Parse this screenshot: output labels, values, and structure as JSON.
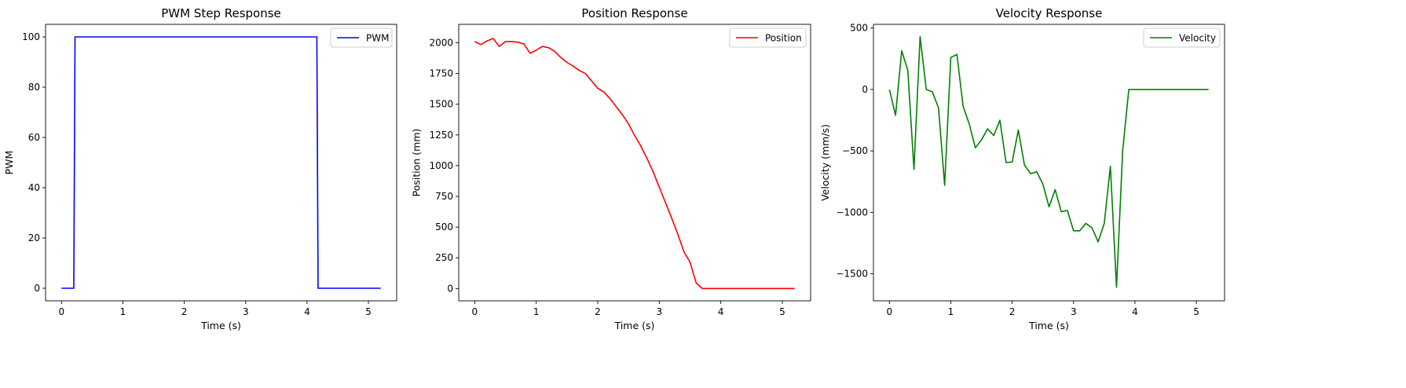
{
  "chart_data": [
    {
      "type": "line",
      "title": "PWM Step Response",
      "xlabel": "Time (s)",
      "ylabel": "PWM",
      "xlim": [
        -0.26,
        5.46
      ],
      "ylim": [
        -5,
        105
      ],
      "xticks": [
        0,
        1,
        2,
        3,
        4,
        5
      ],
      "xtick_labels": [
        "0",
        "1",
        "2",
        "3",
        "4",
        "5"
      ],
      "yticks": [
        0,
        20,
        40,
        60,
        80,
        100
      ],
      "ytick_labels": [
        "0",
        "20",
        "40",
        "60",
        "80",
        "100"
      ],
      "legend_position": "upper right",
      "series": [
        {
          "name": "PWM",
          "color": "#0000ff",
          "x": [
            0,
            0.2,
            0.22,
            4.16,
            4.18,
            5.2
          ],
          "y": [
            0,
            0,
            100,
            100,
            0,
            0
          ]
        }
      ]
    },
    {
      "type": "line",
      "title": "Position Response",
      "xlabel": "Time (s)",
      "ylabel": "Position (mm)",
      "xlim": [
        -0.26,
        5.46
      ],
      "ylim": [
        -100,
        2150
      ],
      "xticks": [
        0,
        1,
        2,
        3,
        4,
        5
      ],
      "xtick_labels": [
        "0",
        "1",
        "2",
        "3",
        "4",
        "5"
      ],
      "yticks": [
        0,
        250,
        500,
        750,
        1000,
        1250,
        1500,
        1750,
        2000
      ],
      "ytick_labels": [
        "0",
        "250",
        "500",
        "750",
        "1000",
        "1250",
        "1500",
        "1750",
        "2000"
      ],
      "legend_position": "upper right",
      "series": [
        {
          "name": "Position",
          "color": "#ff0000",
          "x": [
            0,
            0.1,
            0.2,
            0.3,
            0.4,
            0.5,
            0.6,
            0.7,
            0.8,
            0.9,
            1.0,
            1.1,
            1.2,
            1.3,
            1.4,
            1.5,
            1.6,
            1.7,
            1.8,
            1.9,
            2.0,
            2.1,
            2.2,
            2.3,
            2.4,
            2.5,
            2.6,
            2.7,
            2.8,
            2.9,
            3.0,
            3.1,
            3.2,
            3.3,
            3.4,
            3.5,
            3.6,
            3.7,
            3.8,
            3.9,
            4.0,
            4.5,
            5.0,
            5.2
          ],
          "y": [
            2010,
            1985,
            2015,
            2035,
            1970,
            2010,
            2010,
            2005,
            1990,
            1915,
            1940,
            1970,
            1960,
            1930,
            1880,
            1840,
            1810,
            1775,
            1750,
            1690,
            1630,
            1600,
            1545,
            1480,
            1415,
            1340,
            1245,
            1160,
            1060,
            950,
            825,
            700,
            575,
            445,
            300,
            215,
            45,
            0,
            0,
            0,
            0,
            0,
            0,
            0
          ]
        }
      ]
    },
    {
      "type": "line",
      "title": "Velocity Response",
      "xlabel": "Time (s)",
      "ylabel": "Velocity (mm/s)",
      "xlim": [
        -0.26,
        5.46
      ],
      "ylim": [
        -1720,
        530
      ],
      "xticks": [
        0,
        1,
        2,
        3,
        4,
        5
      ],
      "xtick_labels": [
        "0",
        "1",
        "2",
        "3",
        "4",
        "5"
      ],
      "yticks": [
        -1500,
        -1000,
        -500,
        0,
        500
      ],
      "ytick_labels": [
        "−1500",
        "−1000",
        "−500",
        "0",
        "500"
      ],
      "legend_position": "upper right",
      "series": [
        {
          "name": "Velocity",
          "color": "#008000",
          "x": [
            0,
            0.1,
            0.2,
            0.3,
            0.4,
            0.5,
            0.6,
            0.7,
            0.8,
            0.9,
            1.0,
            1.1,
            1.2,
            1.3,
            1.4,
            1.5,
            1.6,
            1.7,
            1.8,
            1.9,
            2.0,
            2.1,
            2.2,
            2.3,
            2.4,
            2.5,
            2.6,
            2.7,
            2.8,
            2.9,
            3.0,
            3.1,
            3.2,
            3.3,
            3.4,
            3.5,
            3.6,
            3.7,
            3.8,
            3.9,
            4.0,
            4.5,
            5.0,
            5.2
          ],
          "y": [
            0,
            -210,
            315,
            155,
            -650,
            430,
            0,
            -20,
            -150,
            -780,
            260,
            285,
            -135,
            -280,
            -475,
            -410,
            -320,
            -375,
            -250,
            -595,
            -590,
            -330,
            -615,
            -685,
            -670,
            -770,
            -955,
            -815,
            -995,
            -985,
            -1150,
            -1150,
            -1090,
            -1125,
            -1240,
            -1090,
            -625,
            -1610,
            -500,
            0,
            0,
            0,
            0,
            0
          ]
        }
      ]
    }
  ]
}
